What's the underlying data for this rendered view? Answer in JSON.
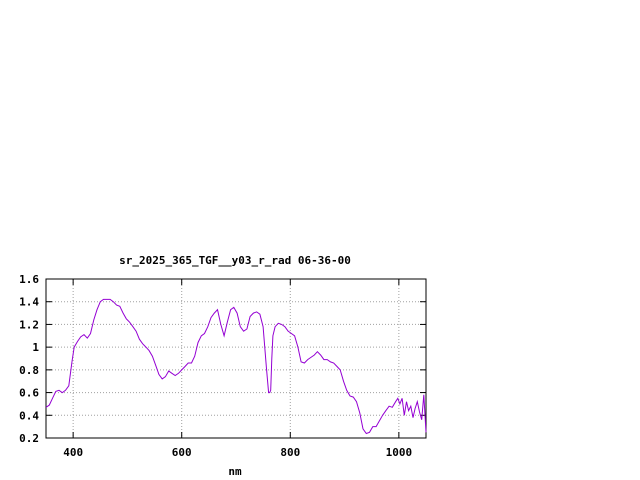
{
  "chart_data": {
    "type": "line",
    "title": "sr_2025_365_TGF__y03_r_rad 06-36-00",
    "xlabel": "nm",
    "ylabel": "",
    "xlim": [
      350,
      1050
    ],
    "ylim": [
      0.2,
      1.6
    ],
    "xticks": [
      400,
      600,
      800,
      1000
    ],
    "xtick_labels": [
      "400",
      "600",
      "800",
      "1000"
    ],
    "yticks": [
      0.2,
      0.4,
      0.6,
      0.8,
      1.0,
      1.2,
      1.4,
      1.6
    ],
    "ytick_labels": [
      "0.2",
      "0.4",
      "0.6",
      "0.8",
      "1",
      "1.2",
      "1.4",
      "1.6"
    ],
    "grid": true,
    "legend": "none",
    "series_color": "#9400d3",
    "series": [
      {
        "x": [
          350,
          356,
          362,
          368,
          374,
          380,
          386,
          392,
          398,
          402,
          408,
          414,
          420,
          426,
          432,
          438,
          444,
          450,
          456,
          462,
          468,
          474,
          480,
          486,
          492,
          498,
          504,
          510,
          516,
          522,
          528,
          534,
          540,
          546,
          552,
          558,
          564,
          570,
          576,
          582,
          588,
          594,
          600,
          606,
          612,
          618,
          624,
          630,
          636,
          642,
          648,
          654,
          660,
          666,
          672,
          678,
          684,
          690,
          696,
          702,
          708,
          714,
          720,
          726,
          732,
          738,
          744,
          750,
          756,
          760,
          762,
          764,
          766,
          768,
          772,
          778,
          784,
          790,
          796,
          802,
          808,
          814,
          820,
          826,
          832,
          838,
          844,
          850,
          856,
          862,
          868,
          874,
          880,
          886,
          892,
          898,
          904,
          910,
          916,
          922,
          928,
          934,
          940,
          946,
          952,
          958,
          964,
          970,
          976,
          982,
          988,
          994,
          998,
          1002,
          1006,
          1010,
          1014,
          1018,
          1022,
          1026,
          1030,
          1034,
          1038,
          1042,
          1046,
          1050
        ],
        "y": [
          0.47,
          0.49,
          0.55,
          0.61,
          0.62,
          0.6,
          0.62,
          0.66,
          0.88,
          1.0,
          1.05,
          1.09,
          1.11,
          1.08,
          1.12,
          1.24,
          1.33,
          1.4,
          1.42,
          1.42,
          1.42,
          1.4,
          1.37,
          1.36,
          1.3,
          1.25,
          1.22,
          1.18,
          1.14,
          1.07,
          1.03,
          1.0,
          0.97,
          0.92,
          0.84,
          0.76,
          0.72,
          0.74,
          0.79,
          0.77,
          0.75,
          0.77,
          0.8,
          0.83,
          0.86,
          0.86,
          0.92,
          1.04,
          1.1,
          1.12,
          1.18,
          1.26,
          1.3,
          1.33,
          1.2,
          1.1,
          1.22,
          1.33,
          1.35,
          1.3,
          1.18,
          1.14,
          1.16,
          1.27,
          1.3,
          1.31,
          1.29,
          1.18,
          0.82,
          0.6,
          0.6,
          0.62,
          0.9,
          1.1,
          1.18,
          1.21,
          1.2,
          1.18,
          1.14,
          1.12,
          1.1,
          1.0,
          0.87,
          0.86,
          0.89,
          0.91,
          0.93,
          0.96,
          0.93,
          0.89,
          0.89,
          0.87,
          0.86,
          0.83,
          0.8,
          0.7,
          0.62,
          0.57,
          0.56,
          0.52,
          0.42,
          0.28,
          0.24,
          0.25,
          0.3,
          0.3,
          0.35,
          0.4,
          0.44,
          0.48,
          0.47,
          0.52,
          0.55,
          0.5,
          0.55,
          0.4,
          0.52,
          0.44,
          0.48,
          0.38,
          0.46,
          0.52,
          0.43,
          0.36,
          0.58,
          0.25
        ]
      }
    ]
  }
}
